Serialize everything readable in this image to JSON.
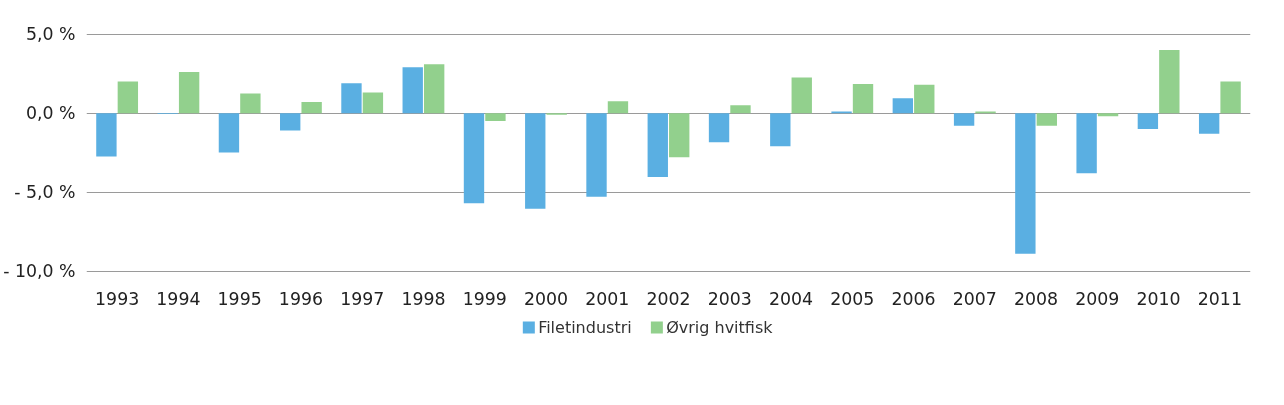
{
  "chart_data": {
    "type": "bar",
    "categories": [
      "1993",
      "1994",
      "1995",
      "1996",
      "1997",
      "1998",
      "1999",
      "2000",
      "2001",
      "2002",
      "2003",
      "2004",
      "2005",
      "2006",
      "2007",
      "2008",
      "2009",
      "2010",
      "2011"
    ],
    "series": [
      {
        "name": "Filetindustri",
        "color": "#5aafe2",
        "values": [
          -2.75,
          -0.05,
          -2.5,
          -1.1,
          1.9,
          2.9,
          -5.7,
          -6.05,
          -5.3,
          -4.05,
          -1.85,
          -2.1,
          0.1,
          0.95,
          -0.8,
          -8.9,
          -3.8,
          -1.0,
          -1.3
        ]
      },
      {
        "name": "Øvrig hvitfisk",
        "color": "#92d08d",
        "values": [
          2.0,
          2.6,
          1.25,
          0.7,
          1.3,
          3.1,
          -0.5,
          -0.1,
          0.75,
          -2.8,
          0.5,
          2.25,
          1.85,
          1.8,
          0.1,
          -0.8,
          -0.2,
          4.0,
          2.0
        ]
      }
    ],
    "ylim": [
      -10,
      5
    ],
    "yticks": [
      {
        "value": 5,
        "label": "5,0 %"
      },
      {
        "value": 0,
        "label": "0,0 %"
      },
      {
        "value": -5,
        "label": "- 5,0 %"
      },
      {
        "value": -10,
        "label": "- 10,0 %"
      }
    ],
    "grid": "y",
    "legend": "bottom"
  }
}
